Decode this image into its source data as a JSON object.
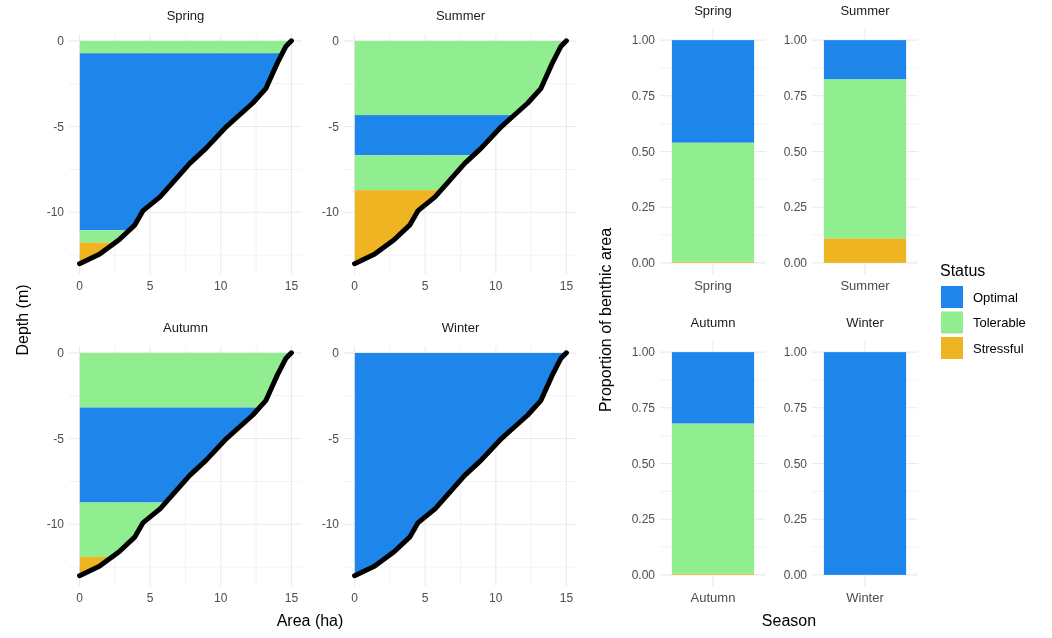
{
  "chart_data": [
    {
      "type": "line",
      "title": "Spring",
      "ylabel": "Depth (m)",
      "xlim": [
        -0.75,
        15.75
      ],
      "ylim": [
        -13.6,
        0.4
      ],
      "xticks": [
        0,
        {
          "value": 2.5,
          "label": null
        },
        5,
        {
          "value": 7.5,
          "label": null
        },
        10,
        {
          "value": 12.5,
          "label": null
        },
        15
      ],
      "yticks": [
        {
          "value": -12.5,
          "label": null
        },
        -10,
        {
          "value": -7.5,
          "label": null
        },
        -5,
        {
          "value": -2.5,
          "label": null
        },
        0
      ],
      "grid": true,
      "line_style": "solid",
      "series": [
        {
          "color": "#000000",
          "x": [
            0,
            1.4,
            2.8,
            3.9,
            4.5,
            5.7,
            7.8,
            8.95,
            10.4,
            12.25,
            13.2,
            14.0,
            14.6,
            15.0
          ],
          "values": [
            -13,
            -12.45,
            -11.6,
            -10.75,
            -9.9,
            -9.1,
            -7.15,
            -6.27,
            -5.0,
            -3.64,
            -2.77,
            -1.3,
            -0.33,
            0
          ]
        }
      ],
      "bands": [
        {
          "axis": "y",
          "from": 0,
          "to": -0.72,
          "color": "#90ee90"
        },
        {
          "axis": "y",
          "from": -0.72,
          "to": -11.05,
          "color": "#1e85ea"
        },
        {
          "axis": "y",
          "from": -11.05,
          "to": -11.77,
          "color": "#90ee90"
        },
        {
          "axis": "y",
          "from": -11.77,
          "to": -13,
          "color": "#eeb422"
        }
      ]
    },
    {
      "type": "line",
      "title": "Summer",
      "xlim": [
        -0.75,
        15.75
      ],
      "ylim": [
        -13.6,
        0.4
      ],
      "xticks": [
        0,
        {
          "value": 2.5,
          "label": null
        },
        5,
        {
          "value": 7.5,
          "label": null
        },
        10,
        {
          "value": 12.5,
          "label": null
        },
        15
      ],
      "yticks": [
        {
          "value": -12.5,
          "label": null
        },
        -10,
        {
          "value": -7.5,
          "label": null
        },
        -5,
        {
          "value": -2.5,
          "label": null
        },
        0
      ],
      "grid": true,
      "line_style": "solid",
      "series": [
        {
          "color": "#000000",
          "x": [
            0,
            1.4,
            2.8,
            3.9,
            4.5,
            5.7,
            7.8,
            8.95,
            10.4,
            12.25,
            13.2,
            14.0,
            14.6,
            15.0
          ],
          "values": [
            -13,
            -12.45,
            -11.6,
            -10.75,
            -9.9,
            -9.1,
            -7.15,
            -6.27,
            -5.0,
            -3.64,
            -2.77,
            -1.3,
            -0.33,
            0
          ]
        }
      ],
      "bands": [
        {
          "axis": "y",
          "from": 0,
          "to": -4.33,
          "color": "#90ee90"
        },
        {
          "axis": "y",
          "from": -4.33,
          "to": -6.67,
          "color": "#1e85ea"
        },
        {
          "axis": "y",
          "from": -6.67,
          "to": -8.71,
          "color": "#90ee90"
        },
        {
          "axis": "y",
          "from": -8.71,
          "to": -13,
          "color": "#eeb422"
        }
      ]
    },
    {
      "type": "line",
      "title": "Autumn",
      "xlabel": "Area (ha)",
      "xlim": [
        -0.75,
        15.75
      ],
      "ylim": [
        -13.6,
        0.4
      ],
      "xticks": [
        0,
        {
          "value": 2.5,
          "label": null
        },
        5,
        {
          "value": 7.5,
          "label": null
        },
        10,
        {
          "value": 12.5,
          "label": null
        },
        15
      ],
      "yticks": [
        {
          "value": -12.5,
          "label": null
        },
        -10,
        {
          "value": -7.5,
          "label": null
        },
        -5,
        {
          "value": -2.5,
          "label": null
        },
        0
      ],
      "grid": true,
      "line_style": "solid",
      "series": [
        {
          "color": "#000000",
          "x": [
            0,
            1.4,
            2.8,
            3.9,
            4.5,
            5.7,
            7.8,
            8.95,
            10.4,
            12.25,
            13.2,
            14.0,
            14.6,
            15.0
          ],
          "values": [
            -13,
            -12.45,
            -11.6,
            -10.75,
            -9.9,
            -9.1,
            -7.15,
            -6.27,
            -5.0,
            -3.64,
            -2.77,
            -1.3,
            -0.33,
            0
          ]
        }
      ],
      "bands": [
        {
          "axis": "y",
          "from": 0,
          "to": -3.19,
          "color": "#90ee90"
        },
        {
          "axis": "y",
          "from": -3.19,
          "to": -8.73,
          "color": "#1e85ea"
        },
        {
          "axis": "y",
          "from": -8.73,
          "to": -11.9,
          "color": "#90ee90"
        },
        {
          "axis": "y",
          "from": -11.9,
          "to": -13,
          "color": "#eeb422"
        }
      ]
    },
    {
      "type": "line",
      "title": "Winter",
      "xlim": [
        -0.75,
        15.75
      ],
      "ylim": [
        -13.6,
        0.4
      ],
      "xticks": [
        0,
        {
          "value": 2.5,
          "label": null
        },
        5,
        {
          "value": 7.5,
          "label": null
        },
        10,
        {
          "value": 12.5,
          "label": null
        },
        15
      ],
      "yticks": [
        {
          "value": -12.5,
          "label": null
        },
        -10,
        {
          "value": -7.5,
          "label": null
        },
        -5,
        {
          "value": -2.5,
          "label": null
        },
        0
      ],
      "grid": true,
      "line_style": "solid",
      "series": [
        {
          "color": "#000000",
          "x": [
            0,
            1.4,
            2.8,
            3.9,
            4.5,
            5.7,
            7.8,
            8.95,
            10.4,
            12.25,
            13.2,
            14.0,
            14.6,
            15.0
          ],
          "values": [
            -13,
            -12.45,
            -11.6,
            -10.75,
            -9.9,
            -9.1,
            -7.15,
            -6.27,
            -5.0,
            -3.64,
            -2.77,
            -1.3,
            -0.33,
            0
          ]
        }
      ],
      "bands": [
        {
          "axis": "y",
          "from": 0,
          "to": -13,
          "color": "#1e85ea"
        }
      ]
    },
    {
      "type": "bar",
      "title": "Spring",
      "ylabel": "Proportion of benthic area",
      "categories": [
        "Spring"
      ],
      "stacked": true,
      "legend": "right",
      "legend_title": "Status",
      "ylim": [
        -0.05,
        1.05
      ],
      "yticks": [
        {
          "value": 0,
          "label": "0.00"
        },
        {
          "value": 0.125,
          "label": null
        },
        {
          "value": 0.25,
          "label": "0.25"
        },
        {
          "value": 0.375,
          "label": null
        },
        {
          "value": 0.5,
          "label": "0.50"
        },
        {
          "value": 0.625,
          "label": null
        },
        {
          "value": 0.75,
          "label": "0.75"
        },
        {
          "value": 0.875,
          "label": null
        },
        {
          "value": 1,
          "label": "1.00"
        }
      ],
      "grid": true,
      "series": [
        {
          "name": "Stressful",
          "color": "#eeb422",
          "values": [
            0.005
          ]
        },
        {
          "name": "Tolerable",
          "color": "#90ee90",
          "values": [
            0.535
          ]
        },
        {
          "name": "Optimal",
          "color": "#1e85ea",
          "values": [
            0.46
          ]
        }
      ]
    },
    {
      "type": "bar",
      "title": "Summer",
      "categories": [
        "Summer"
      ],
      "stacked": true,
      "ylim": [
        -0.05,
        1.05
      ],
      "yticks": [
        {
          "value": 0,
          "label": "0.00"
        },
        {
          "value": 0.125,
          "label": null
        },
        {
          "value": 0.25,
          "label": "0.25"
        },
        {
          "value": 0.375,
          "label": null
        },
        {
          "value": 0.5,
          "label": "0.50"
        },
        {
          "value": 0.625,
          "label": null
        },
        {
          "value": 0.75,
          "label": "0.75"
        },
        {
          "value": 0.875,
          "label": null
        },
        {
          "value": 1,
          "label": "1.00"
        }
      ],
      "grid": true,
      "series": [
        {
          "color": "#eeb422",
          "values": [
            0.11
          ]
        },
        {
          "color": "#90ee90",
          "values": [
            0.715
          ]
        },
        {
          "color": "#1e85ea",
          "values": [
            0.175
          ]
        }
      ]
    },
    {
      "type": "bar",
      "title": "Autumn",
      "xlabel": "Season",
      "categories": [
        "Autumn"
      ],
      "stacked": true,
      "ylim": [
        -0.05,
        1.05
      ],
      "yticks": [
        {
          "value": 0,
          "label": "0.00"
        },
        {
          "value": 0.125,
          "label": null
        },
        {
          "value": 0.25,
          "label": "0.25"
        },
        {
          "value": 0.375,
          "label": null
        },
        {
          "value": 0.5,
          "label": "0.50"
        },
        {
          "value": 0.625,
          "label": null
        },
        {
          "value": 0.75,
          "label": "0.75"
        },
        {
          "value": 0.875,
          "label": null
        },
        {
          "value": 1,
          "label": "1.00"
        }
      ],
      "grid": true,
      "series": [
        {
          "color": "#eeb422",
          "values": [
            0.005
          ]
        },
        {
          "color": "#90ee90",
          "values": [
            0.675
          ]
        },
        {
          "color": "#1e85ea",
          "values": [
            0.32
          ]
        }
      ]
    },
    {
      "type": "bar",
      "title": "Winter",
      "categories": [
        "Winter"
      ],
      "stacked": true,
      "ylim": [
        -0.05,
        1.05
      ],
      "yticks": [
        {
          "value": 0,
          "label": "0.00"
        },
        {
          "value": 0.125,
          "label": null
        },
        {
          "value": 0.25,
          "label": "0.25"
        },
        {
          "value": 0.375,
          "label": null
        },
        {
          "value": 0.5,
          "label": "0.50"
        },
        {
          "value": 0.625,
          "label": null
        },
        {
          "value": 0.75,
          "label": "0.75"
        },
        {
          "value": 0.875,
          "label": null
        },
        {
          "value": 1,
          "label": "1.00"
        }
      ],
      "grid": true,
      "series": [
        {
          "color": "#eeb422",
          "values": [
            0
          ]
        },
        {
          "color": "#90ee90",
          "values": [
            0
          ]
        },
        {
          "color": "#1e85ea",
          "values": [
            1
          ]
        }
      ]
    }
  ]
}
